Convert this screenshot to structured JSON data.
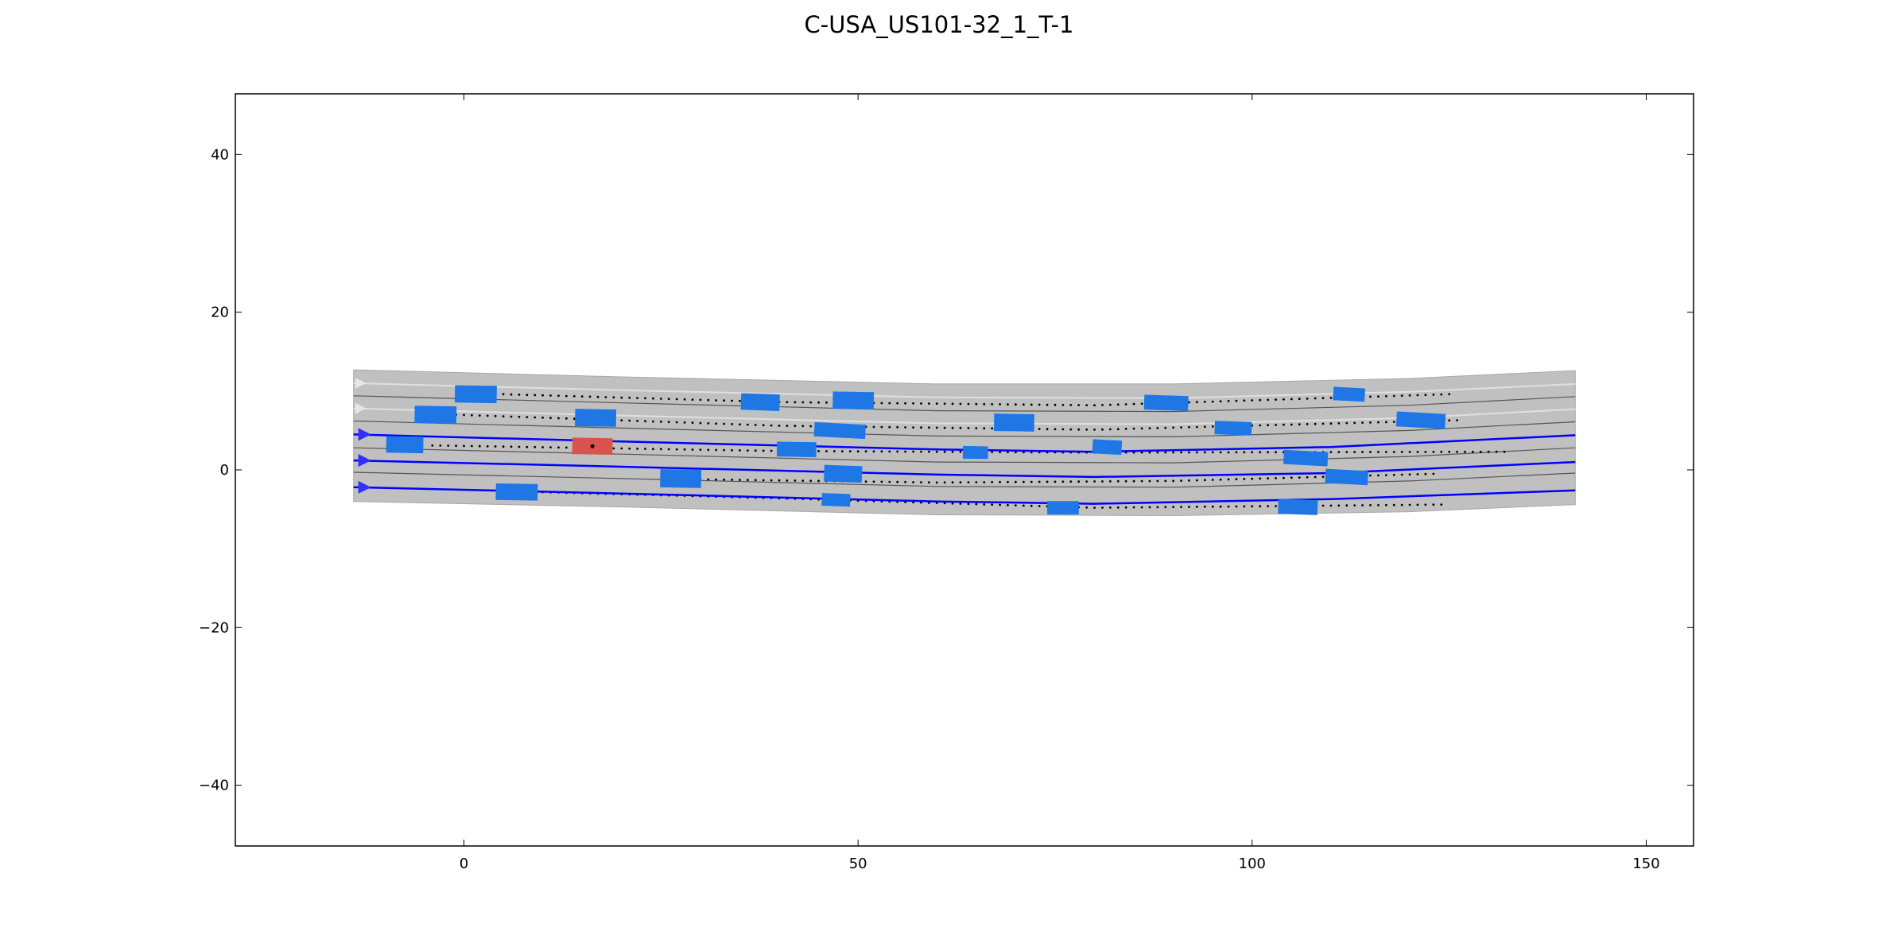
{
  "chart_data": {
    "type": "scatter",
    "title": "C-USA_US101-32_1_T-1",
    "xlabel": "",
    "ylabel": "",
    "xlim": [
      -29,
      156
    ],
    "ylim": [
      -47.7,
      47.7
    ],
    "xticks": [
      0,
      50,
      100,
      150
    ],
    "yticks": [
      -40,
      -20,
      0,
      20,
      40
    ],
    "grid": false,
    "colors": {
      "road": "#c0c0c0",
      "lane_line": "#555555",
      "lane_line_light": "#e0e0e0",
      "route": "#0000ff",
      "route_arrow": "#2f2fff",
      "vehicle": "#1f77e6",
      "ego_vehicle": "#d9534f",
      "trajectory_dots": "#000000"
    },
    "road": {
      "upper_edge": [
        [
          -14,
          12.7
        ],
        [
          20,
          11.8
        ],
        [
          60,
          10.9
        ],
        [
          90,
          10.9
        ],
        [
          120,
          11.6
        ],
        [
          141,
          12.6
        ]
      ],
      "lower_edge": [
        [
          -14,
          -4.0
        ],
        [
          20,
          -4.7
        ],
        [
          60,
          -5.7
        ],
        [
          90,
          -5.8
        ],
        [
          120,
          -5.3
        ],
        [
          141,
          -4.4
        ]
      ],
      "lane_lines": [
        [
          [
            -14,
            9.4
          ],
          [
            20,
            8.5
          ],
          [
            60,
            7.5
          ],
          [
            90,
            7.4
          ],
          [
            120,
            8.2
          ],
          [
            141,
            9.3
          ]
        ],
        [
          [
            -14,
            6.2
          ],
          [
            20,
            5.3
          ],
          [
            60,
            4.3
          ],
          [
            90,
            4.2
          ],
          [
            120,
            5.0
          ],
          [
            141,
            6.1
          ]
        ],
        [
          [
            -14,
            2.8
          ],
          [
            20,
            2.0
          ],
          [
            60,
            1.0
          ],
          [
            90,
            0.9
          ],
          [
            120,
            1.7
          ],
          [
            141,
            2.8
          ]
        ],
        [
          [
            -14,
            -0.3
          ],
          [
            20,
            -1.1
          ],
          [
            60,
            -2.1
          ],
          [
            90,
            -2.2
          ],
          [
            120,
            -1.4
          ],
          [
            141,
            -0.4
          ]
        ]
      ],
      "light_lane_lines": [
        [
          [
            -14,
            11.0
          ],
          [
            20,
            10.1
          ],
          [
            60,
            9.2
          ],
          [
            90,
            9.1
          ],
          [
            120,
            9.9
          ],
          [
            141,
            10.9
          ]
        ],
        [
          [
            -14,
            7.8
          ],
          [
            20,
            6.9
          ],
          [
            60,
            5.9
          ],
          [
            90,
            5.8
          ],
          [
            120,
            6.6
          ],
          [
            141,
            7.7
          ]
        ]
      ]
    },
    "route_lines": [
      [
        [
          -14,
          4.5
        ],
        [
          20,
          3.6
        ],
        [
          60,
          2.6
        ],
        [
          80,
          2.3
        ],
        [
          110,
          2.9
        ],
        [
          141,
          4.4
        ]
      ],
      [
        [
          -14,
          1.2
        ],
        [
          20,
          0.4
        ],
        [
          60,
          -0.6
        ],
        [
          80,
          -0.9
        ],
        [
          110,
          -0.4
        ],
        [
          141,
          1.0
        ]
      ],
      [
        [
          -14,
          -2.2
        ],
        [
          20,
          -3.0
        ],
        [
          60,
          -4.0
        ],
        [
          80,
          -4.3
        ],
        [
          110,
          -3.7
        ],
        [
          141,
          -2.6
        ]
      ]
    ],
    "route_arrows": [
      [
        -13,
        4.5
      ],
      [
        -13,
        1.2
      ],
      [
        -13,
        -2.2
      ]
    ],
    "ego_vehicle": {
      "x": 16.3,
      "y": 3.0,
      "length": 5.0,
      "width": 2.0,
      "angle": -1
    },
    "vehicles": [
      {
        "x": 1.5,
        "y": 9.6,
        "length": 5.2,
        "width": 2.1,
        "angle": -1
      },
      {
        "x": -3.6,
        "y": 7.0,
        "length": 5.2,
        "width": 2.1,
        "angle": -1
      },
      {
        "x": -7.5,
        "y": 3.2,
        "length": 4.6,
        "width": 2.0,
        "angle": -1
      },
      {
        "x": 6.7,
        "y": -2.8,
        "length": 5.2,
        "width": 2.0,
        "angle": -1
      },
      {
        "x": 16.7,
        "y": 6.6,
        "length": 5.1,
        "width": 2.1,
        "angle": -1
      },
      {
        "x": 27.5,
        "y": -1.1,
        "length": 5.1,
        "width": 2.2,
        "angle": -1
      },
      {
        "x": 37.6,
        "y": 8.6,
        "length": 4.8,
        "width": 2.0,
        "angle": -2
      },
      {
        "x": 42.2,
        "y": 2.6,
        "length": 4.9,
        "width": 1.8,
        "angle": -1
      },
      {
        "x": 47.2,
        "y": -3.8,
        "length": 3.5,
        "width": 1.5,
        "angle": -2
      },
      {
        "x": 48.1,
        "y": -0.5,
        "length": 4.7,
        "width": 2.0,
        "angle": -2
      },
      {
        "x": 47.7,
        "y": 5.0,
        "length": 6.4,
        "width": 1.7,
        "angle": -3
      },
      {
        "x": 49.4,
        "y": 8.8,
        "length": 5.1,
        "width": 2.1,
        "angle": -1
      },
      {
        "x": 64.9,
        "y": 2.2,
        "length": 3.1,
        "width": 1.5,
        "angle": -1
      },
      {
        "x": 69.8,
        "y": 6.0,
        "length": 5.0,
        "width": 2.1,
        "angle": -1
      },
      {
        "x": 76.0,
        "y": -4.8,
        "length": 3.9,
        "width": 1.6,
        "angle": 0
      },
      {
        "x": 81.6,
        "y": 2.9,
        "length": 3.6,
        "width": 1.7,
        "angle": -3
      },
      {
        "x": 89.1,
        "y": 8.5,
        "length": 5.5,
        "width": 1.8,
        "angle": -2
      },
      {
        "x": 97.6,
        "y": 5.3,
        "length": 4.6,
        "width": 1.6,
        "angle": -2
      },
      {
        "x": 105.8,
        "y": -4.7,
        "length": 4.9,
        "width": 1.8,
        "angle": -2
      },
      {
        "x": 106.8,
        "y": 1.5,
        "length": 5.5,
        "width": 1.7,
        "angle": -3
      },
      {
        "x": 112.0,
        "y": -0.9,
        "length": 5.3,
        "width": 1.7,
        "angle": -3
      },
      {
        "x": 112.3,
        "y": 9.6,
        "length": 3.9,
        "width": 1.6,
        "angle": -3
      },
      {
        "x": 121.4,
        "y": 6.3,
        "length": 6.1,
        "width": 1.8,
        "angle": -3
      }
    ],
    "trajectories": [
      {
        "x0": 5,
        "x1": 125,
        "y_at": [
          [
            5,
            9.6
          ],
          [
            40,
            8.6
          ],
          [
            80,
            8.2
          ],
          [
            125,
            9.6
          ]
        ]
      },
      {
        "x0": -1,
        "x1": 126,
        "y_at": [
          [
            -1,
            7.0
          ],
          [
            40,
            5.6
          ],
          [
            80,
            5.1
          ],
          [
            126,
            6.3
          ]
        ]
      },
      {
        "x0": -4,
        "x1": 132,
        "y_at": [
          [
            -4,
            3.1
          ],
          [
            40,
            2.4
          ],
          [
            80,
            2.2
          ],
          [
            132,
            2.3
          ]
        ]
      },
      {
        "x0": 9,
        "x1": 124,
        "y_at": [
          [
            9,
            -2.8
          ],
          [
            40,
            -3.6
          ],
          [
            80,
            -4.8
          ],
          [
            124,
            -4.4
          ]
        ]
      },
      {
        "x0": 30,
        "x1": 123,
        "y_at": [
          [
            30,
            -1.2
          ],
          [
            60,
            -1.6
          ],
          [
            90,
            -1.4
          ],
          [
            123,
            -0.5
          ]
        ]
      }
    ]
  }
}
